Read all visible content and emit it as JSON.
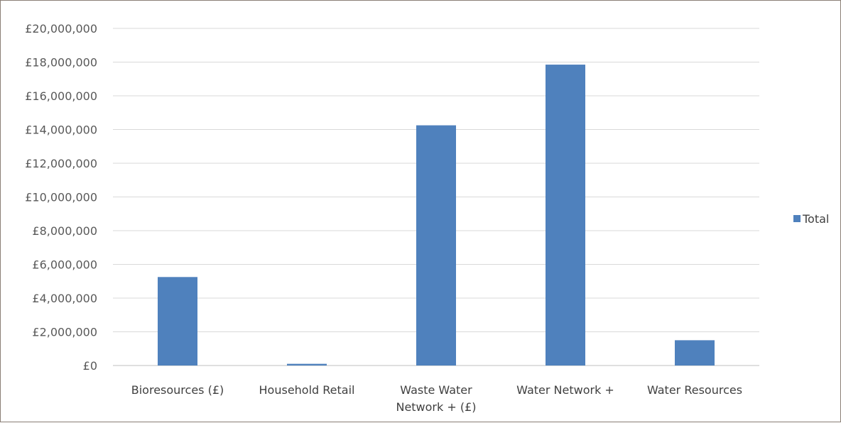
{
  "chart_data": {
    "type": "bar",
    "categories": [
      [
        "Bioresources (£)"
      ],
      [
        "Household Retail"
      ],
      [
        "Waste Water",
        "Network + (£)"
      ],
      [
        "Water Network +"
      ],
      [
        "Water Resources"
      ]
    ],
    "series": [
      {
        "name": "Total",
        "values": [
          5250000,
          100000,
          14250000,
          17850000,
          1500000
        ],
        "color": "#4f81bd"
      }
    ],
    "y_ticks": [
      "£0",
      "£2,000,000",
      "£4,000,000",
      "£6,000,000",
      "£8,000,000",
      "£10,000,000",
      "£12,000,000",
      "£14,000,000",
      "£16,000,000",
      "£18,000,000",
      "£20,000,000"
    ],
    "ylim": [
      0,
      20000000
    ],
    "grid": true,
    "legend_position": "right",
    "gridline_color": "#d9d9d9",
    "axis_color": "#bfbfbf"
  }
}
